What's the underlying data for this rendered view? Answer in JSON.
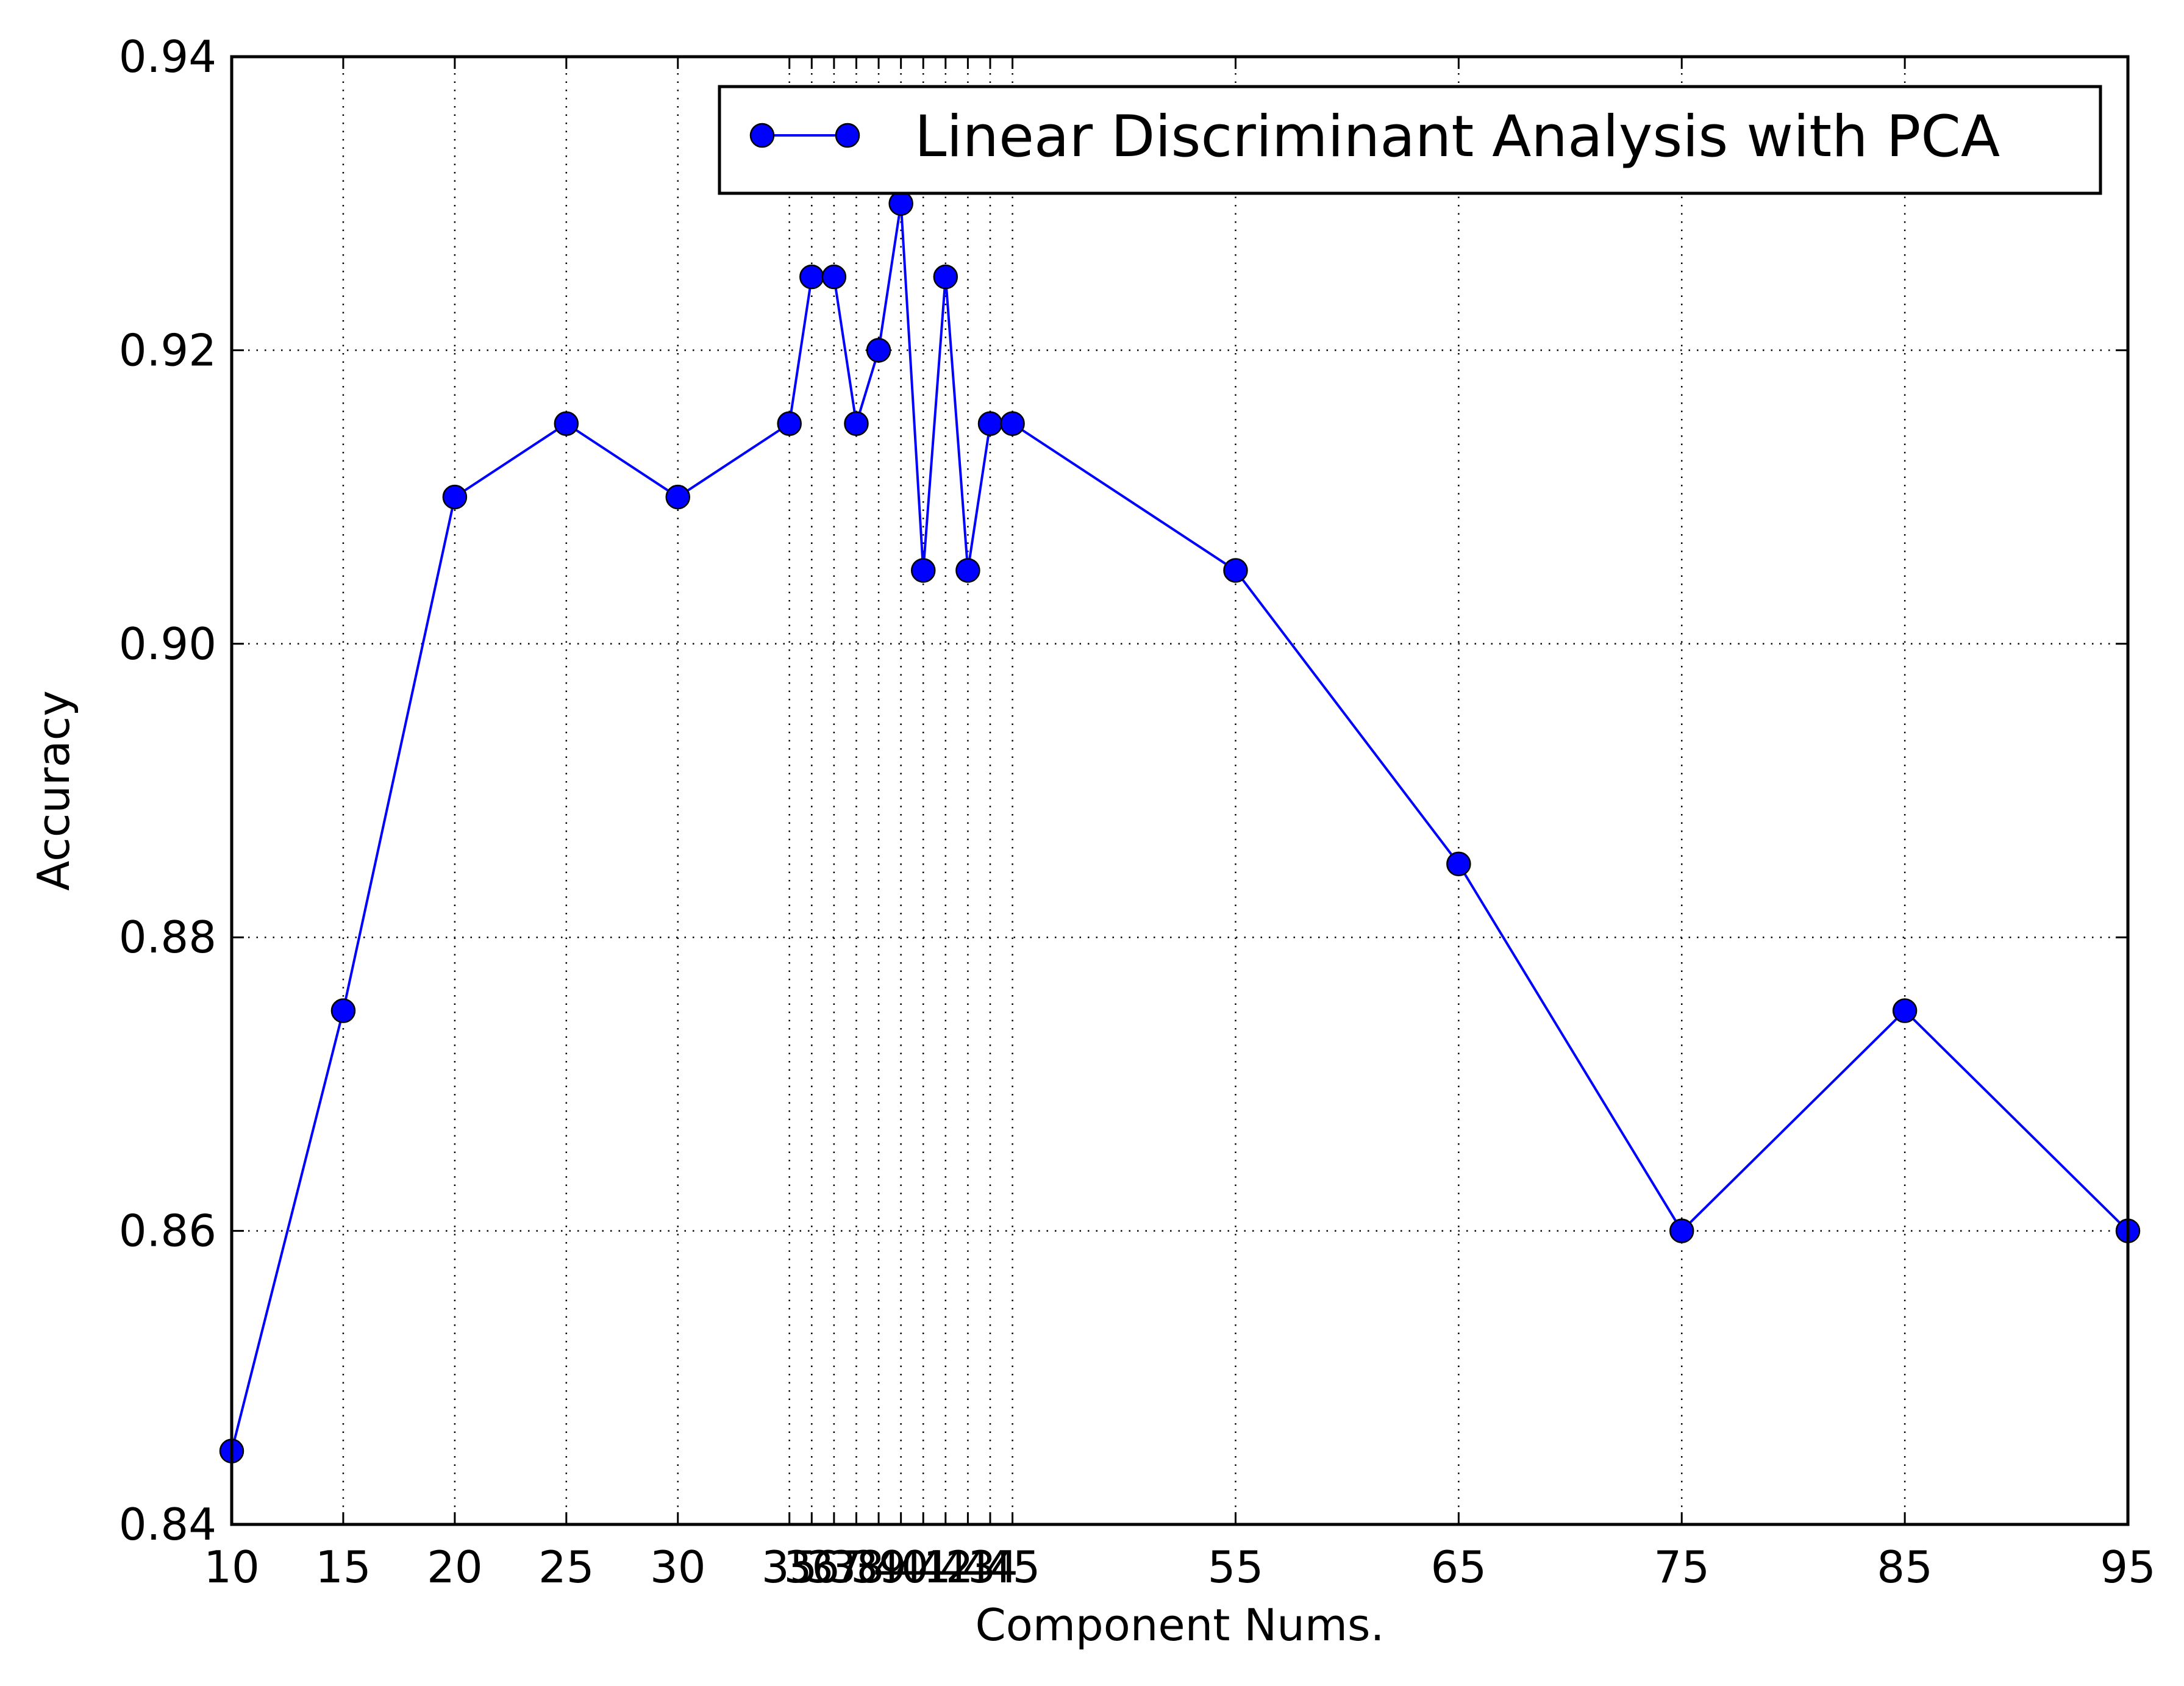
{
  "chart_data": {
    "type": "line",
    "xlabel": "Component Nums.",
    "ylabel": "Accuracy",
    "xlim": [
      10,
      95
    ],
    "ylim": [
      0.84,
      0.94
    ],
    "grid": true,
    "legend_position": "top-right",
    "x_ticks": [
      10,
      15,
      20,
      25,
      30,
      35,
      36,
      37,
      38,
      39,
      40,
      41,
      42,
      43,
      44,
      45,
      55,
      65,
      75,
      85,
      95
    ],
    "y_tick_labels": [
      "0.84",
      "0.86",
      "0.88",
      "0.90",
      "0.92",
      "0.94"
    ],
    "y_ticks": [
      0.84,
      0.86,
      0.88,
      0.9,
      0.92,
      0.94
    ],
    "series": [
      {
        "name": "Linear Discriminant Analysis with PCA",
        "color": "#0000ff",
        "marker": "circle",
        "x": [
          10,
          15,
          20,
          25,
          30,
          35,
          36,
          37,
          38,
          39,
          40,
          41,
          42,
          43,
          44,
          45,
          55,
          65,
          75,
          85,
          95
        ],
        "y": [
          0.845,
          0.875,
          0.91,
          0.915,
          0.91,
          0.915,
          0.925,
          0.925,
          0.915,
          0.92,
          0.93,
          0.905,
          0.925,
          0.905,
          0.915,
          0.915,
          0.905,
          0.885,
          0.86,
          0.875,
          0.86
        ]
      }
    ]
  }
}
